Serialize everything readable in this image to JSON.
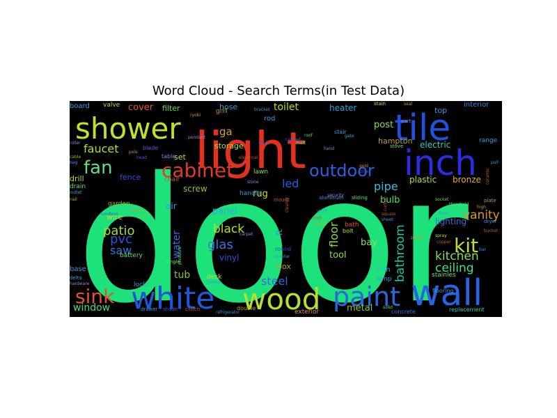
{
  "chart_data": {
    "type": "wordcloud",
    "title": "Word Cloud - Search Terms(in Test Data)",
    "background": "#000000",
    "words": [
      {
        "text": "door",
        "weight": 1.0,
        "color": "#1de17a"
      },
      {
        "text": "light",
        "weight": 0.42,
        "color": "#e2321e"
      },
      {
        "text": "wall",
        "weight": 0.33,
        "color": "#2a63e0"
      },
      {
        "text": "wood",
        "weight": 0.27,
        "color": "#b7e02e"
      },
      {
        "text": "white",
        "weight": 0.29,
        "color": "#2156d6"
      },
      {
        "text": "tile",
        "weight": 0.3,
        "color": "#2252dc"
      },
      {
        "text": "inch",
        "weight": 0.28,
        "color": "#2b2ee0"
      },
      {
        "text": "shower",
        "weight": 0.25,
        "color": "#c2e02a"
      },
      {
        "text": "paint",
        "weight": 0.22,
        "color": "#2a68da"
      },
      {
        "text": "cabinet",
        "weight": 0.17,
        "color": "#e23a2a"
      },
      {
        "text": "outdoor",
        "weight": 0.14,
        "color": "#2e5fe0"
      },
      {
        "text": "fan",
        "weight": 0.15,
        "color": "#5ce07a"
      },
      {
        "text": "sink",
        "weight": 0.15,
        "color": "#e2522a"
      },
      {
        "text": "kit",
        "weight": 0.15,
        "color": "#c2e02a"
      },
      {
        "text": "kitchen",
        "weight": 0.1,
        "color": "#7ae05e"
      },
      {
        "text": "ceiling",
        "weight": 0.1,
        "color": "#44e08a"
      },
      {
        "text": "bathroom",
        "weight": 0.1,
        "color": "#1ec7a2"
      },
      {
        "text": "floor",
        "weight": 0.09,
        "color": "#8ae042"
      },
      {
        "text": "vanity",
        "weight": 0.1,
        "color": "#e0982a"
      },
      {
        "text": "black",
        "weight": 0.1,
        "color": "#b2e02a"
      },
      {
        "text": "glas",
        "weight": 0.1,
        "color": "#2e7ae0"
      },
      {
        "text": "patio",
        "weight": 0.1,
        "color": "#a2e02a"
      },
      {
        "text": "pvc",
        "weight": 0.09,
        "color": "#2a52e0"
      },
      {
        "text": "saw",
        "weight": 0.08,
        "color": "#2e78e0"
      },
      {
        "text": "faucet",
        "weight": 0.09,
        "color": "#b0e02a"
      },
      {
        "text": "pipe",
        "weight": 0.09,
        "color": "#2ec2d6"
      },
      {
        "text": "led",
        "weight": 0.09,
        "color": "#2e5ae0"
      },
      {
        "text": "window",
        "weight": 0.08,
        "color": "#4ae062"
      },
      {
        "text": "steel",
        "weight": 0.09,
        "color": "#2e6ae0"
      },
      {
        "text": "metal",
        "weight": 0.07,
        "color": "#8ac22a"
      },
      {
        "text": "toilet",
        "weight": 0.08,
        "color": "#b8e02a"
      },
      {
        "text": "cover",
        "weight": 0.07,
        "color": "#e25a2a"
      },
      {
        "text": "ga",
        "weight": 0.08,
        "color": "#d6a02a"
      },
      {
        "text": "post",
        "weight": 0.07,
        "color": "#8ae05e"
      },
      {
        "text": "heater",
        "weight": 0.06,
        "color": "#2ea0e0"
      },
      {
        "text": "hose",
        "weight": 0.06,
        "color": "#2e9ae0"
      },
      {
        "text": "electric",
        "weight": 0.06,
        "color": "#2ad2c2"
      },
      {
        "text": "water",
        "weight": 0.07,
        "color": "#2e72e0"
      },
      {
        "text": "tub",
        "weight": 0.07,
        "color": "#8ac22a"
      },
      {
        "text": "panel",
        "weight": 0.06,
        "color": "#2ea8e0"
      },
      {
        "text": "rug",
        "weight": 0.06,
        "color": "#c2e02a"
      },
      {
        "text": "bulb",
        "weight": 0.06,
        "color": "#5ae062"
      },
      {
        "text": "plastic",
        "weight": 0.06,
        "color": "#b8e02a"
      },
      {
        "text": "bronze",
        "weight": 0.06,
        "color": "#e0b22a"
      },
      {
        "text": "lighting",
        "weight": 0.06,
        "color": "#2e6ae0"
      },
      {
        "text": "bay",
        "weight": 0.06,
        "color": "#8ae05e"
      },
      {
        "text": "tool",
        "weight": 0.06,
        "color": "#8ae042"
      },
      {
        "text": "box",
        "weight": 0.05,
        "color": "#c29a2a"
      },
      {
        "text": "vinyl",
        "weight": 0.05,
        "color": "#2e4ee0"
      },
      {
        "text": "ft",
        "weight": 0.05,
        "color": "#2ea2e0"
      },
      {
        "text": "drill",
        "weight": 0.05,
        "color": "#b8e02a"
      },
      {
        "text": "screw",
        "weight": 0.05,
        "color": "#8ac22a"
      },
      {
        "text": "air",
        "weight": 0.05,
        "color": "#2ea2e0"
      },
      {
        "text": "set",
        "weight": 0.05,
        "color": "#c2e02a"
      },
      {
        "text": "filter",
        "weight": 0.05,
        "color": "#5ae062"
      },
      {
        "text": "storage",
        "weight": 0.05,
        "color": "#b8e02a"
      },
      {
        "text": "hampton",
        "weight": 0.05,
        "color": "#c2a02a"
      },
      {
        "text": "fence",
        "weight": 0.05,
        "color": "#2e4ee0"
      },
      {
        "text": "wire",
        "weight": 0.05,
        "color": "#b8e02a"
      },
      {
        "text": "trim",
        "weight": 0.04,
        "color": "#2ec2d6"
      },
      {
        "text": "lamp",
        "weight": 0.04,
        "color": "#2ea2e0"
      },
      {
        "text": "stainles",
        "weight": 0.04,
        "color": "#5ae062"
      },
      {
        "text": "top",
        "weight": 0.04,
        "color": "#2e9ae0"
      },
      {
        "text": "interior",
        "weight": 0.04,
        "color": "#2e8ae0"
      },
      {
        "text": "range",
        "weight": 0.04,
        "color": "#2ea2e0"
      },
      {
        "text": "board",
        "weight": 0.04,
        "color": "#2ea2e0"
      },
      {
        "text": "valve",
        "weight": 0.04,
        "color": "#b8e02a"
      },
      {
        "text": "grill",
        "weight": 0.04,
        "color": "#c29a2a"
      },
      {
        "text": "lawn",
        "weight": 0.04,
        "color": "#8ae042"
      },
      {
        "text": "rod",
        "weight": 0.04,
        "color": "#2ea2e0"
      },
      {
        "text": "blade",
        "weight": 0.04,
        "color": "#5a5ae0"
      },
      {
        "text": "table",
        "weight": 0.04,
        "color": "#8a8ae0"
      },
      {
        "text": "chair",
        "weight": 0.04,
        "color": "#c25a2a"
      },
      {
        "text": "garden",
        "weight": 0.04,
        "color": "#8ac22a"
      },
      {
        "text": "handle",
        "weight": 0.04,
        "color": "#2e9ae0"
      },
      {
        "text": "deck",
        "weight": 0.04,
        "color": "#c2e02a"
      },
      {
        "text": "battery",
        "weight": 0.04,
        "color": "#5ae062"
      },
      {
        "text": "base",
        "weight": 0.04,
        "color": "#2e9ae0"
      },
      {
        "text": "lock",
        "weight": 0.03,
        "color": "#2ea2e0"
      },
      {
        "text": "bath",
        "weight": 0.04,
        "color": "#e2522a"
      },
      {
        "text": "bolt",
        "weight": 0.03,
        "color": "#c2e02a"
      },
      {
        "text": "exterior",
        "weight": 0.03,
        "color": "#e0982a"
      },
      {
        "text": "concrete",
        "weight": 0.03,
        "color": "#2e7ae0"
      },
      {
        "text": "flooring",
        "weight": 0.03,
        "color": "#2ea2e0"
      },
      {
        "text": "replacement",
        "weight": 0.03,
        "color": "#2ed2a2"
      },
      {
        "text": "drain",
        "weight": 0.03,
        "color": "#5ae062"
      },
      {
        "text": "stair",
        "weight": 0.03,
        "color": "#2e9ae0"
      },
      {
        "text": "stain",
        "weight": 0.03,
        "color": "#b8e02a"
      },
      {
        "text": "stove",
        "weight": 0.03,
        "color": "#5ae062"
      },
      {
        "text": "part",
        "weight": 0.03,
        "color": "#8a8ae0"
      },
      {
        "text": "plate",
        "weight": 0.03,
        "color": "#c29a2a"
      },
      {
        "text": "dryer",
        "weight": 0.03,
        "color": "#2e9ae0"
      },
      {
        "text": "copper",
        "weight": 0.03,
        "color": "#c25a2a"
      },
      {
        "text": "spray",
        "weight": 0.03,
        "color": "#c2e02a"
      },
      {
        "text": "double",
        "weight": 0.03,
        "color": "#c2a02a"
      },
      {
        "text": "single",
        "weight": 0.03,
        "color": "#5ae062"
      },
      {
        "text": "round",
        "weight": 0.03,
        "color": "#2e4ee0"
      },
      {
        "text": "home",
        "weight": 0.03,
        "color": "#2e9ae0"
      },
      {
        "text": "shade",
        "weight": 0.03,
        "color": "#2e5ae0"
      },
      {
        "text": "drawer",
        "weight": 0.03,
        "color": "#2e9ae0"
      },
      {
        "text": "delta",
        "weight": 0.03,
        "color": "#2ea2e0"
      },
      {
        "text": "hardware",
        "weight": 0.03,
        "color": "#8a8ae0"
      },
      {
        "text": "sliding",
        "weight": 0.03,
        "color": "#5ae062"
      },
      {
        "text": "aluminum",
        "weight": 0.03,
        "color": "#2e9ae0"
      },
      {
        "text": "mount",
        "weight": 0.03,
        "color": "#c25a2a"
      },
      {
        "text": "vent",
        "weight": 0.03,
        "color": "#2ea2e0"
      },
      {
        "text": "red",
        "weight": 0.03,
        "color": "#c25a2a"
      },
      {
        "text": "cabinet",
        "weight": 0.02,
        "color": "#5a5ae0"
      },
      {
        "text": "square",
        "weight": 0.02,
        "color": "#c25a2a"
      },
      {
        "text": "holder",
        "weight": 0.02,
        "color": "#8ac22a"
      },
      {
        "text": "bracket",
        "weight": 0.02,
        "color": "#2e9ae0"
      },
      {
        "text": "shelf",
        "weight": 0.02,
        "color": "#2e5ae0"
      },
      {
        "text": "hand",
        "weight": 0.02,
        "color": "#8a8ae0"
      },
      {
        "text": "pull",
        "weight": 0.02,
        "color": "#2ea2e0"
      },
      {
        "text": "ceramic",
        "weight": 0.02,
        "color": "#c25a2a"
      },
      {
        "text": "matt",
        "weight": 0.02,
        "color": "#5ae062"
      },
      {
        "text": "outlet",
        "weight": 0.02,
        "color": "#2ea2e0"
      },
      {
        "text": "cord",
        "weight": 0.02,
        "color": "#8ac22a"
      },
      {
        "text": "brass",
        "weight": 0.02,
        "color": "#c29a2a"
      },
      {
        "text": "pressure",
        "weight": 0.02,
        "color": "#5ae062"
      },
      {
        "text": "clutch",
        "weight": 0.02,
        "color": "#c25a2a"
      },
      {
        "text": "sheet",
        "weight": 0.02,
        "color": "#2ea2e0"
      },
      {
        "text": "carpet",
        "weight": 0.02,
        "color": "#8a8ae0"
      },
      {
        "text": "ryobi",
        "weight": 0.02,
        "color": "#c2a02a"
      },
      {
        "text": "head",
        "weight": 0.02,
        "color": "#5a5ae0"
      },
      {
        "text": "bag",
        "weight": 0.02,
        "color": "#2ea2e0"
      },
      {
        "text": "high",
        "weight": 0.02,
        "color": "#c29a2a"
      },
      {
        "text": "cleaner",
        "weight": 0.02,
        "color": "#c25a2a"
      },
      {
        "text": "stone",
        "weight": 0.02,
        "color": "#8a8ae0"
      },
      {
        "text": "roof",
        "weight": 0.02,
        "color": "#5ae062"
      },
      {
        "text": "gate",
        "weight": 0.02,
        "color": "#2ea2e0"
      },
      {
        "text": "nail",
        "weight": 0.02,
        "color": "#8ac22a"
      },
      {
        "text": "gold",
        "weight": 0.02,
        "color": "#c29a2a"
      },
      {
        "text": "slide",
        "weight": 0.02,
        "color": "#2e5ae0"
      },
      {
        "text": "curtain",
        "weight": 0.02,
        "color": "#c25a2a"
      },
      {
        "text": "flush",
        "weight": 0.02,
        "color": "#2e9ae0"
      },
      {
        "text": "solid",
        "weight": 0.02,
        "color": "#5ae062"
      },
      {
        "text": "cordless",
        "weight": 0.02,
        "color": "#2e5ae0"
      },
      {
        "text": "paper",
        "weight": 0.02,
        "color": "#c29a2a"
      },
      {
        "text": "electrical",
        "weight": 0.02,
        "color": "#c25a2a"
      },
      {
        "text": "pendant",
        "weight": 0.02,
        "color": "#8a8ae0"
      },
      {
        "text": "socket",
        "weight": 0.02,
        "color": "#5ae062"
      },
      {
        "text": "bar",
        "weight": 0.02,
        "color": "#2e9ae0"
      },
      {
        "text": "seal",
        "weight": 0.02,
        "color": "#c2a02a"
      },
      {
        "text": "roller",
        "weight": 0.02,
        "color": "#8a8ae0"
      },
      {
        "text": "bucket",
        "weight": 0.02,
        "color": "#c25a2a"
      },
      {
        "text": "threshold",
        "weight": 0.02,
        "color": "#5ae062"
      },
      {
        "text": "adapter",
        "weight": 0.02,
        "color": "#2ea2e0"
      },
      {
        "text": "cable",
        "weight": 0.02,
        "color": "#8ac22a"
      },
      {
        "text": "pole",
        "weight": 0.02,
        "color": "#c29a2a"
      },
      {
        "text": "refrigerator",
        "weight": 0.02,
        "color": "#2e9ae0"
      },
      {
        "text": "security",
        "weight": 0.02,
        "color": "#8a8ae0"
      }
    ]
  }
}
